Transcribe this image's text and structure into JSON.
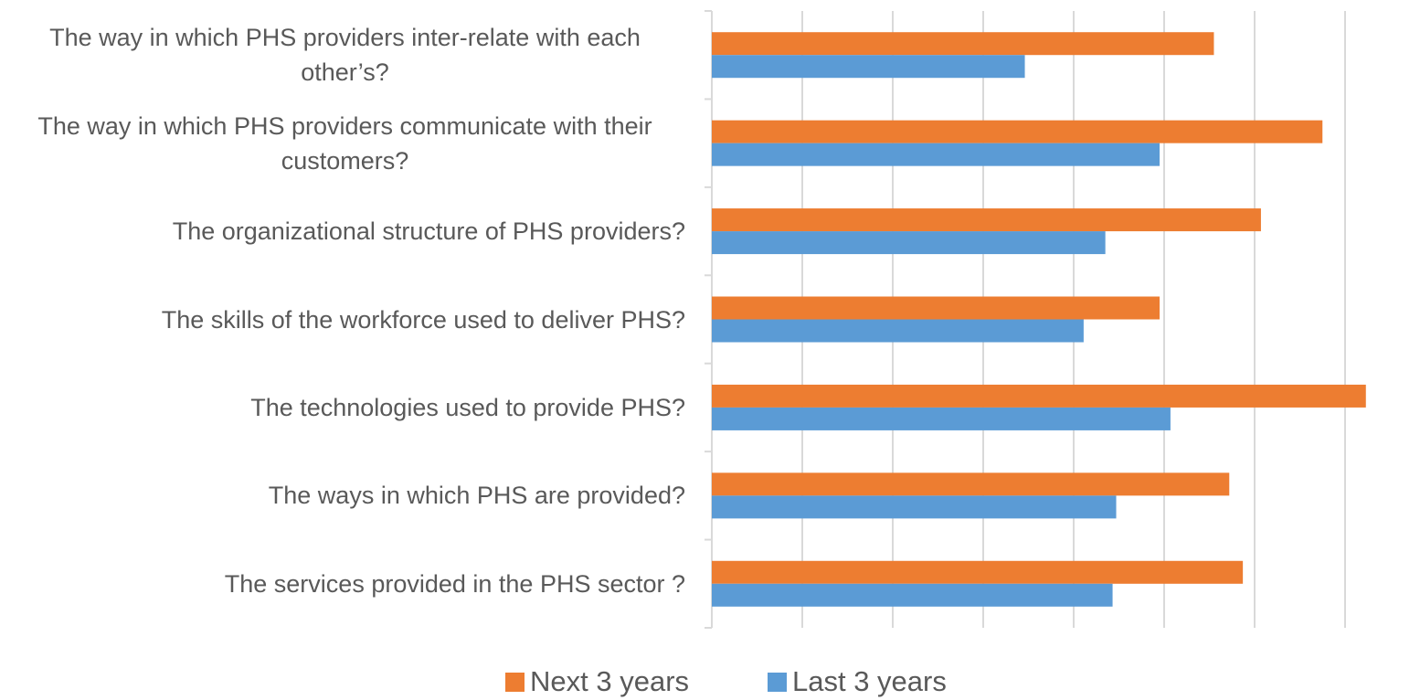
{
  "chart_data": {
    "type": "barh",
    "categories": [
      "The way in which PHS providers inter-relate with each other’s?",
      "The way in which PHS providers communicate with their customers?",
      "The organizational structure of PHS providers?",
      "The skills of the workforce used to deliver PHS?",
      "The technologies used to provide PHS?",
      "The ways in which PHS are provided?",
      "The services provided in the PHS sector ?"
    ],
    "series": [
      {
        "name": "Next 3 years",
        "color": "#ed7d31",
        "values": [
          5.55,
          6.75,
          6.07,
          4.95,
          7.23,
          5.72,
          5.87
        ]
      },
      {
        "name": "Last 3 years",
        "color": "#5b9bd5",
        "values": [
          3.46,
          4.95,
          4.35,
          4.11,
          5.07,
          4.47,
          4.43
        ]
      }
    ],
    "xlim": [
      0,
      7.5
    ],
    "xticks": [
      0,
      1,
      2,
      3,
      4,
      5,
      6,
      7
    ],
    "grid": true,
    "legend": "bottom"
  }
}
